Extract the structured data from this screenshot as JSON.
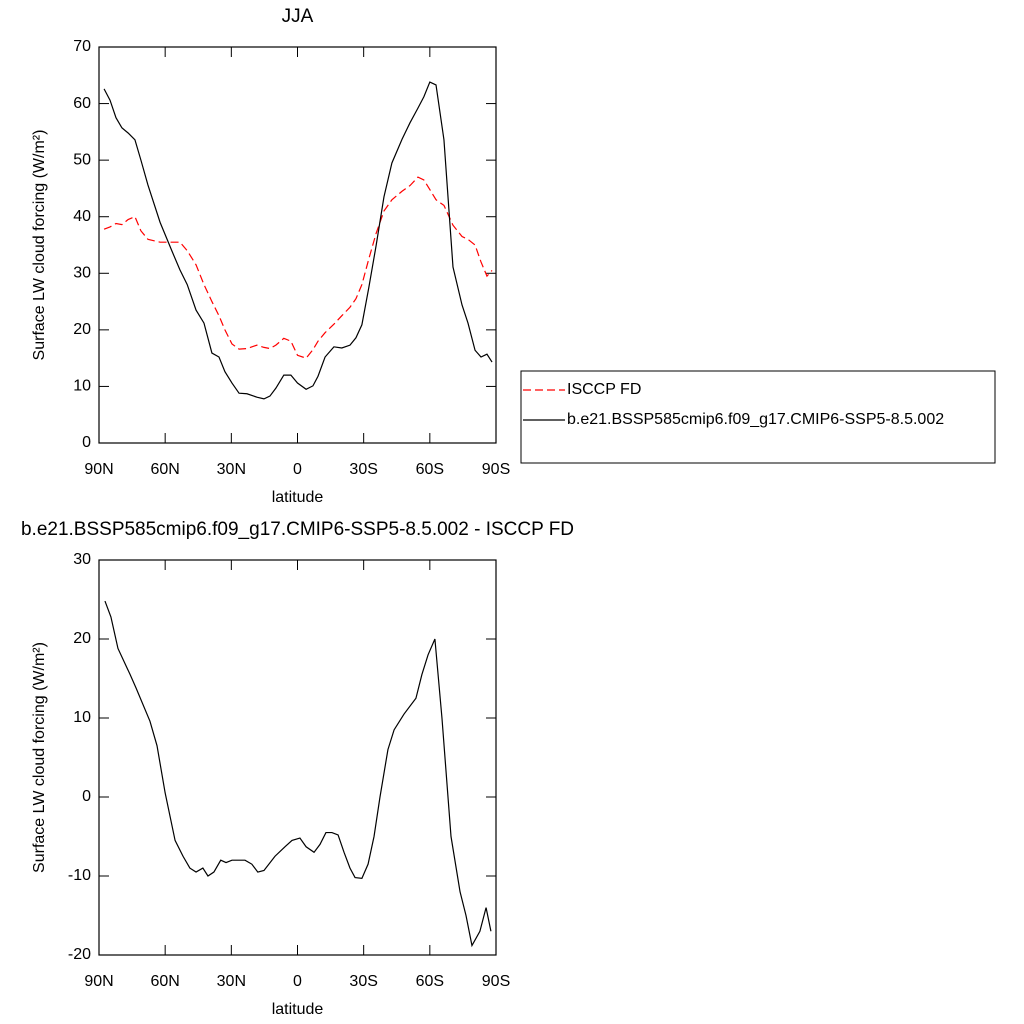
{
  "chart_data": [
    {
      "type": "line",
      "title": "JJA",
      "xlabel": "latitude",
      "ylabel": "Surface LW cloud forcing (W/m²)",
      "x": [
        87.7,
        85,
        82.3,
        79.6,
        76.8,
        73.7,
        71,
        67.8,
        62.3,
        57,
        53.3,
        50,
        46,
        42.4,
        38.8,
        35.6,
        32.9,
        29.7,
        26.5,
        22.9,
        18.4,
        15.2,
        12.5,
        9.8,
        6.2,
        3,
        0,
        -3.9,
        -7,
        -9.3,
        -12.5,
        -16.5,
        -20.1,
        -23.8,
        -26.5,
        -29.2,
        -32.3,
        -35.6,
        -39.2,
        -42.8,
        -47.4,
        -51,
        -54.6,
        -57.3,
        -60,
        -62.8,
        -66.4,
        -70.5,
        -74.6,
        -77.3,
        -80.5,
        -83.2,
        -85.9,
        -88.2
      ],
      "series": [
        {
          "name": "ISCCP FD",
          "color": "#ff0000",
          "dashed": true,
          "values": [
            37.8,
            38.2,
            38.8,
            38.6,
            39.5,
            40,
            37.5,
            36,
            35.5,
            35.5,
            35.5,
            34,
            31.5,
            28,
            25,
            22.5,
            20,
            17.5,
            16.6,
            16.7,
            17.3,
            16.9,
            16.7,
            17.3,
            18.5,
            18,
            15.5,
            15,
            16.5,
            18,
            19.5,
            21,
            22.5,
            24,
            25.5,
            28,
            32.5,
            37,
            41,
            43,
            44.5,
            45.5,
            47,
            46.5,
            44.8,
            43,
            42,
            38.5,
            36.5,
            36,
            35,
            32,
            29.5,
            30.5
          ]
        },
        {
          "name": "b.e21.BSSP585cmip6.f09_g17.CMIP6-SSP5-8.5.002",
          "color": "#000000",
          "dashed": false,
          "values": [
            62.6,
            60.6,
            57.5,
            55.7,
            54.8,
            53.6,
            50,
            45.6,
            39,
            34,
            30.6,
            28,
            23.5,
            21.2,
            15.9,
            15.2,
            12.6,
            10.6,
            8.8,
            8.7,
            8.1,
            7.8,
            8.3,
            9.7,
            12,
            12,
            10.6,
            9.5,
            10.1,
            11.8,
            15.2,
            17,
            16.8,
            17.3,
            18.6,
            20.9,
            27.4,
            34.8,
            43.5,
            49.5,
            53.7,
            56.6,
            59.2,
            61.2,
            63.8,
            63.3,
            53.6,
            31.1,
            24.4,
            21.2,
            16.4,
            15.2,
            15.7,
            14.3
          ]
        }
      ],
      "xlim": [
        90,
        -90
      ],
      "xticks": [
        {
          "value": 90,
          "label": "90N"
        },
        {
          "value": 60,
          "label": "60N"
        },
        {
          "value": 30,
          "label": "30N"
        },
        0,
        {
          "value": -30,
          "label": "30S"
        },
        {
          "value": -60,
          "label": "60S"
        },
        {
          "value": -90,
          "label": "90S"
        }
      ],
      "ylim": [
        0,
        70
      ],
      "yticks": [
        0,
        10,
        20,
        30,
        40,
        50,
        60,
        70
      ],
      "legend": "right"
    },
    {
      "type": "line",
      "title": "b.e21.BSSP585cmip6.f09_g17.CMIP6-SSP5-8.5.002 - ISCCP FD",
      "xlabel": "latitude",
      "ylabel": "Surface LW cloud forcing (W/m²)",
      "x": [
        87.3,
        84.6,
        81.4,
        75.9,
        73.2,
        66.9,
        63.7,
        60,
        55.5,
        51.9,
        48.8,
        46,
        42.9,
        40.6,
        37.9,
        34.8,
        32.4,
        29.7,
        23.8,
        20.7,
        18,
        15.2,
        10.2,
        5.7,
        2.5,
        -1.1,
        -3.9,
        -7.5,
        -10.2,
        -12.9,
        -15.6,
        -18.4,
        -21.1,
        -23.8,
        -26.1,
        -29.2,
        -32,
        -34.7,
        -37.4,
        -41,
        -43.8,
        -48.3,
        -53.7,
        -56.4,
        -59.2,
        -62.3,
        -65.5,
        -69.6,
        -73.7,
        -76.4,
        -79.1,
        -82.7,
        -85.5,
        -87.7
      ],
      "values": [
        24.8,
        22.8,
        18.8,
        15.5,
        13.8,
        9.6,
        6.5,
        0.5,
        -5.5,
        -7.5,
        -9,
        -9.5,
        -9,
        -10,
        -9.5,
        -8,
        -8.3,
        -8,
        -8,
        -8.5,
        -9.5,
        -9.3,
        -7.5,
        -6.3,
        -5.5,
        -5.2,
        -6.3,
        -7,
        -6,
        -4.5,
        -4.5,
        -4.8,
        -7,
        -9,
        -10.2,
        -10.3,
        -8.5,
        -5,
        0,
        6,
        8.5,
        10.5,
        12.5,
        15.5,
        18,
        20,
        10,
        -5,
        -12,
        -15,
        -18.8,
        -17,
        -14,
        -17
      ],
      "color": "#000000",
      "xlim": [
        90,
        -90
      ],
      "xticks": [
        {
          "value": 90,
          "label": "90N"
        },
        {
          "value": 60,
          "label": "60N"
        },
        {
          "value": 30,
          "label": "30N"
        },
        0,
        {
          "value": -30,
          "label": "30S"
        },
        {
          "value": -60,
          "label": "60S"
        },
        {
          "value": -90,
          "label": "90S"
        }
      ],
      "ylim": [
        -20,
        30
      ],
      "yticks": [
        -20,
        -10,
        0,
        10,
        20,
        30
      ]
    }
  ]
}
